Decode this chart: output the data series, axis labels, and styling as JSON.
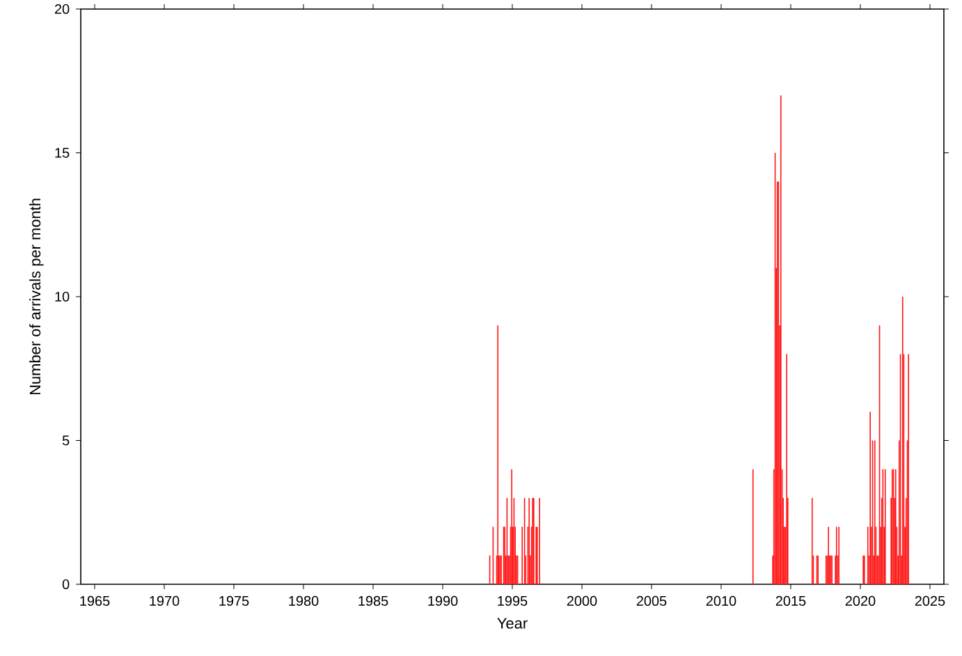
{
  "chart_data": {
    "type": "bar",
    "xlabel": "Year",
    "ylabel": "Number of arrivals per month",
    "x": [
      "1993-05",
      "1993-08",
      "1993-11",
      "1993-12",
      "1994-01",
      "1994-02",
      "1994-03",
      "1994-05",
      "1994-06",
      "1994-07",
      "1994-08",
      "1994-09",
      "1994-10",
      "1994-11",
      "1994-12",
      "1995-01",
      "1995-02",
      "1995-03",
      "1995-04",
      "1995-05",
      "1995-09",
      "1995-11",
      "1995-12",
      "1996-02",
      "1996-03",
      "1996-04",
      "1996-05",
      "1996-06",
      "1996-07",
      "1996-09",
      "1996-10",
      "1996-12",
      "2012-04",
      "2013-09",
      "2013-10",
      "2013-11",
      "2013-12",
      "2014-01",
      "2014-02",
      "2014-03",
      "2014-04",
      "2014-05",
      "2014-06",
      "2014-07",
      "2014-08",
      "2014-09",
      "2014-10",
      "2016-07",
      "2016-08",
      "2016-11",
      "2016-12",
      "2017-07",
      "2017-08",
      "2017-09",
      "2017-10",
      "2017-11",
      "2017-12",
      "2018-03",
      "2018-04",
      "2018-05",
      "2018-06",
      "2020-03",
      "2020-04",
      "2020-07",
      "2020-08",
      "2020-09",
      "2020-10",
      "2020-11",
      "2020-12",
      "2021-01",
      "2021-02",
      "2021-03",
      "2021-04",
      "2021-05",
      "2021-06",
      "2021-07",
      "2021-08",
      "2021-09",
      "2021-10",
      "2022-03",
      "2022-04",
      "2022-05",
      "2022-06",
      "2022-07",
      "2022-08",
      "2022-09",
      "2022-10",
      "2022-11",
      "2022-12",
      "2023-01",
      "2023-02",
      "2023-03",
      "2023-04",
      "2023-05",
      "2023-06"
    ],
    "values": [
      1,
      2,
      1,
      9,
      1,
      1,
      1,
      2,
      2,
      1,
      3,
      1,
      1,
      2,
      4,
      2,
      3,
      2,
      1,
      1,
      2,
      3,
      1,
      2,
      3,
      1,
      2,
      3,
      3,
      2,
      2,
      3,
      4,
      1,
      4,
      15,
      11,
      14,
      14,
      9,
      17,
      4,
      3,
      2,
      2,
      8,
      3,
      3,
      1,
      1,
      1,
      1,
      1,
      2,
      1,
      1,
      1,
      1,
      2,
      1,
      2,
      1,
      1,
      2,
      1,
      6,
      2,
      5,
      1,
      5,
      2,
      1,
      1,
      9,
      2,
      3,
      4,
      2,
      4,
      3,
      4,
      4,
      3,
      4,
      2,
      1,
      5,
      8,
      1,
      10,
      8,
      2,
      3,
      5,
      8
    ],
    "color": "#ff1a1a",
    "xlim": [
      "1964",
      "2026"
    ],
    "xticks": [
      {
        "value": "1965",
        "label": "1965"
      },
      {
        "value": "1970",
        "label": "1970"
      },
      {
        "value": "1975",
        "label": "1975"
      },
      {
        "value": "1980",
        "label": "1980"
      },
      {
        "value": "1985",
        "label": "1985"
      },
      {
        "value": "1990",
        "label": "1990"
      },
      {
        "value": "1995",
        "label": "1995"
      },
      {
        "value": "2000",
        "label": "2000"
      },
      {
        "value": "2005",
        "label": "2005"
      },
      {
        "value": "2010",
        "label": "2010"
      },
      {
        "value": "2015",
        "label": "2015"
      },
      {
        "value": "2020",
        "label": "2020"
      },
      {
        "value": "2025",
        "label": "2025"
      }
    ],
    "ylim": [
      0,
      20
    ],
    "yticks": [
      0,
      5,
      10,
      15,
      20
    ]
  }
}
